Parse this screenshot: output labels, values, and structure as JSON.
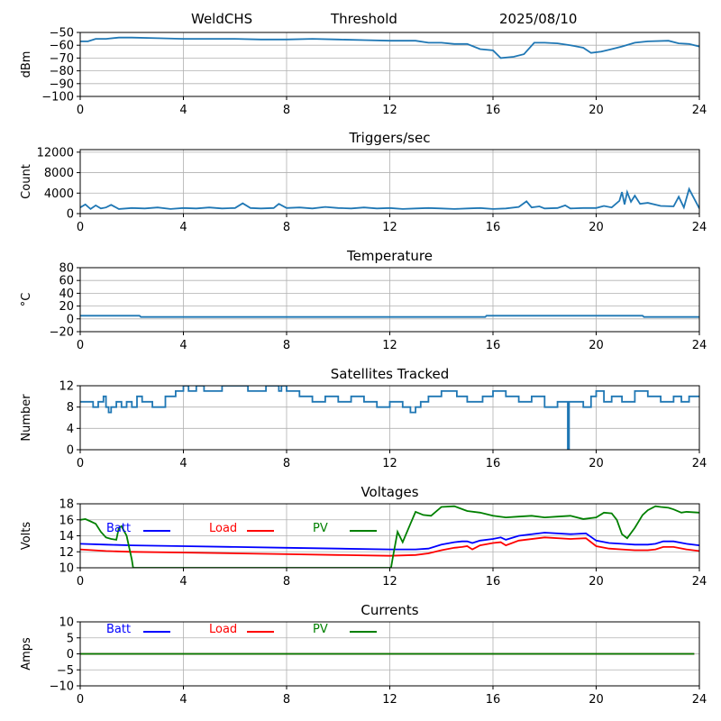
{
  "header": {
    "station": "WeldCHS",
    "mode": "Threshold",
    "date": "2025/08/10"
  },
  "colors": {
    "series": "#1f77b4",
    "batt": "#0000ff",
    "load": "#ff0000",
    "pv": "#008000",
    "grid": "#b0b0b0"
  },
  "chart_data": [
    {
      "id": "signal",
      "type": "line",
      "title": "",
      "xlabel": "",
      "ylabel": "dBm",
      "xlim": [
        0,
        24
      ],
      "xticks": [
        0,
        4,
        8,
        12,
        16,
        20,
        24
      ],
      "ylim": [
        -100,
        -50
      ],
      "yticks": [
        -100,
        -90,
        -80,
        -70,
        -60,
        -50
      ],
      "grid": true,
      "series": [
        {
          "color": "series",
          "x": [
            0,
            0.3,
            0.6,
            1,
            1.5,
            2,
            3,
            4,
            5,
            6,
            7,
            8,
            9,
            10,
            11,
            12,
            13,
            13.5,
            14,
            14.5,
            15,
            15.5,
            16,
            16.3,
            16.8,
            17.2,
            17.6,
            18,
            18.5,
            19,
            19.5,
            19.8,
            20.2,
            20.6,
            21,
            21.5,
            22,
            22.8,
            23.2,
            23.6,
            24
          ],
          "y": [
            -57,
            -57,
            -55,
            -55,
            -54,
            -54,
            -54.5,
            -55,
            -55,
            -55,
            -55.5,
            -55.5,
            -55,
            -55.5,
            -56,
            -56.5,
            -56.5,
            -58,
            -58,
            -59,
            -59,
            -63,
            -64,
            -70,
            -69,
            -67,
            -58,
            -58,
            -58.5,
            -60,
            -62,
            -66,
            -65,
            -63,
            -61,
            -58,
            -57,
            -56.5,
            -58.5,
            -59,
            -61
          ]
        }
      ]
    },
    {
      "id": "triggers",
      "type": "line",
      "title": "Triggers/sec",
      "xlabel": "",
      "ylabel": "Count",
      "xlim": [
        0,
        24
      ],
      "xticks": [
        0,
        4,
        8,
        12,
        16,
        20,
        24
      ],
      "ylim": [
        0,
        12500
      ],
      "yticks": [
        0,
        4000,
        8000,
        12000
      ],
      "grid": true,
      "series": [
        {
          "color": "series",
          "x": [
            0,
            0.2,
            0.4,
            0.6,
            0.8,
            1,
            1.2,
            1.5,
            2,
            2.5,
            3,
            3.5,
            4,
            4.5,
            5,
            5.5,
            6,
            6.3,
            6.6,
            7,
            7.5,
            7.7,
            8,
            8.5,
            9,
            9.5,
            10,
            10.5,
            11,
            11.5,
            12,
            12.5,
            13,
            13.5,
            14,
            14.5,
            15,
            15.5,
            16,
            16.5,
            17,
            17.3,
            17.5,
            17.8,
            18,
            18.5,
            18.8,
            19,
            19.5,
            20,
            20.3,
            20.6,
            20.9,
            21,
            21.1,
            21.2,
            21.35,
            21.5,
            21.7,
            22,
            22.5,
            23,
            23.2,
            23.4,
            23.6,
            24
          ],
          "y": [
            1200,
            1800,
            900,
            1600,
            1000,
            1200,
            1700,
            900,
            1100,
            1000,
            1200,
            900,
            1100,
            1000,
            1200,
            1000,
            1100,
            2000,
            1100,
            1000,
            1100,
            1900,
            1100,
            1200,
            1000,
            1300,
            1100,
            1000,
            1200,
            1000,
            1100,
            900,
            1000,
            1100,
            1000,
            900,
            1000,
            1100,
            900,
            1000,
            1300,
            2400,
            1200,
            1400,
            1000,
            1100,
            1600,
            1000,
            1100,
            1100,
            1500,
            1200,
            2500,
            4200,
            1800,
            4200,
            2300,
            3500,
            1900,
            2100,
            1500,
            1400,
            3300,
            1200,
            4800,
            1000
          ]
        }
      ]
    },
    {
      "id": "temperature",
      "type": "line",
      "title": "Temperature",
      "xlabel": "",
      "ylabel": "°C",
      "xlim": [
        0,
        24
      ],
      "xticks": [
        0,
        4,
        8,
        12,
        16,
        20,
        24
      ],
      "ylim": [
        -20,
        80
      ],
      "yticks": [
        -20,
        0,
        20,
        40,
        60,
        80
      ],
      "grid": true,
      "series": [
        {
          "color": "series",
          "x": [
            0,
            2.3,
            2.35,
            15.7,
            15.75,
            21.8,
            21.85,
            24
          ],
          "y": [
            5,
            5,
            3,
            3,
            5,
            5,
            3,
            3
          ]
        }
      ]
    },
    {
      "id": "satellites",
      "type": "line",
      "title": "Satellites Tracked",
      "xlabel": "",
      "ylabel": "Number",
      "xlim": [
        0,
        24
      ],
      "xticks": [
        0,
        4,
        8,
        12,
        16,
        20,
        24
      ],
      "ylim": [
        0,
        12
      ],
      "yticks": [
        0,
        4,
        8,
        12
      ],
      "grid": true,
      "series": [
        {
          "color": "series",
          "x": [
            0,
            0.5,
            0.5,
            0.7,
            0.7,
            0.9,
            0.9,
            1,
            1,
            1.1,
            1.1,
            1.2,
            1.2,
            1.4,
            1.4,
            1.6,
            1.6,
            1.8,
            1.8,
            2,
            2,
            2.2,
            2.2,
            2.4,
            2.4,
            2.8,
            2.8,
            3.3,
            3.3,
            3.7,
            3.7,
            4,
            4,
            4.2,
            4.2,
            4.5,
            4.5,
            4.8,
            4.8,
            5.5,
            5.5,
            6.5,
            6.5,
            7.2,
            7.2,
            7.7,
            7.7,
            7.8,
            7.8,
            8,
            8,
            8.5,
            8.5,
            9,
            9,
            9.5,
            9.5,
            10,
            10,
            10.5,
            10.5,
            11,
            11,
            11.5,
            11.5,
            12,
            12,
            12.5,
            12.5,
            12.8,
            12.8,
            13,
            13,
            13.2,
            13.2,
            13.5,
            13.5,
            14,
            14,
            14.6,
            14.6,
            15,
            15,
            15.6,
            15.6,
            16,
            16,
            16.5,
            16.5,
            17,
            17,
            17.5,
            17.5,
            18,
            18,
            18.5,
            18.5,
            18.9,
            18.9,
            18.95,
            18.95,
            19.5,
            19.5,
            19.8,
            19.8,
            20,
            20,
            20.3,
            20.3,
            20.6,
            20.6,
            21,
            21,
            21.5,
            21.5,
            22,
            22,
            22.5,
            22.5,
            23,
            23,
            23.3,
            23.3,
            23.6,
            23.6,
            24
          ],
          "y": [
            9,
            9,
            8,
            8,
            9,
            9,
            10,
            10,
            8,
            8,
            7,
            7,
            8,
            8,
            9,
            9,
            8,
            8,
            9,
            9,
            8,
            8,
            10,
            10,
            9,
            9,
            8,
            8,
            10,
            10,
            11,
            11,
            12,
            12,
            11,
            11,
            12,
            12,
            11,
            11,
            12,
            12,
            11,
            11,
            12,
            12,
            11,
            11,
            12,
            12,
            11,
            11,
            10,
            10,
            9,
            9,
            10,
            10,
            9,
            9,
            10,
            10,
            9,
            9,
            8,
            8,
            9,
            9,
            8,
            8,
            7,
            7,
            8,
            8,
            9,
            9,
            10,
            10,
            11,
            11,
            10,
            10,
            9,
            9,
            10,
            10,
            11,
            11,
            10,
            10,
            9,
            9,
            10,
            10,
            8,
            8,
            9,
            9,
            0,
            0,
            9,
            9,
            8,
            8,
            10,
            10,
            11,
            11,
            9,
            9,
            10,
            10,
            9,
            9,
            11,
            11,
            10,
            10,
            9,
            9,
            10,
            10,
            9,
            9,
            10,
            10
          ]
        }
      ]
    },
    {
      "id": "voltages",
      "type": "line",
      "title": "Voltages",
      "xlabel": "",
      "ylabel": "Volts",
      "xlim": [
        0,
        24
      ],
      "xticks": [
        0,
        4,
        8,
        12,
        16,
        20,
        24
      ],
      "ylim": [
        10,
        18
      ],
      "yticks": [
        10,
        12,
        14,
        16,
        18
      ],
      "grid": true,
      "legend": [
        "Batt",
        "Load",
        "PV"
      ],
      "legend_position": "top-left",
      "series": [
        {
          "name": "Batt",
          "color": "batt",
          "x": [
            0,
            1,
            2,
            4,
            6,
            8,
            10,
            12,
            13,
            13.5,
            14,
            14.5,
            14.8,
            15,
            15.2,
            15.5,
            16,
            16.3,
            16.5,
            17,
            18,
            19,
            19.6,
            20,
            20.5,
            21,
            21.5,
            22,
            22.3,
            22.6,
            23,
            23.5,
            24
          ],
          "y": [
            13,
            12.9,
            12.8,
            12.7,
            12.6,
            12.5,
            12.4,
            12.3,
            12.3,
            12.4,
            12.9,
            13.2,
            13.3,
            13.3,
            13.1,
            13.4,
            13.6,
            13.8,
            13.5,
            14,
            14.4,
            14.2,
            14.3,
            13.4,
            13.1,
            13,
            12.9,
            12.9,
            13,
            13.3,
            13.3,
            13,
            12.8
          ]
        },
        {
          "name": "Load",
          "color": "load",
          "x": [
            0,
            1,
            2,
            4,
            6,
            8,
            10,
            12,
            13,
            13.5,
            14,
            14.5,
            14.8,
            15,
            15.2,
            15.5,
            16,
            16.3,
            16.5,
            17,
            18,
            19,
            19.6,
            20,
            20.5,
            21,
            21.5,
            22,
            22.3,
            22.6,
            23,
            23.5,
            24
          ],
          "y": [
            12.3,
            12.1,
            12,
            11.9,
            11.8,
            11.7,
            11.6,
            11.5,
            11.6,
            11.8,
            12.2,
            12.5,
            12.6,
            12.7,
            12.3,
            12.8,
            13.1,
            13.2,
            12.8,
            13.4,
            13.8,
            13.6,
            13.7,
            12.7,
            12.4,
            12.3,
            12.2,
            12.2,
            12.3,
            12.6,
            12.6,
            12.3,
            12.1
          ]
        },
        {
          "name": "PV",
          "color": "pv",
          "x": [
            0,
            0.2,
            0.4,
            0.6,
            0.8,
            1,
            1.2,
            1.4,
            1.5,
            1.6,
            1.8,
            2,
            2.05,
            12.05,
            12.1,
            12.3,
            12.5,
            12.8,
            13,
            13.3,
            13.6,
            14,
            14.5,
            15,
            15.5,
            16,
            16.5,
            17,
            17.5,
            18,
            18.5,
            19,
            19.5,
            20,
            20.3,
            20.6,
            20.8,
            21,
            21.2,
            21.5,
            21.8,
            22,
            22.3,
            22.5,
            22.8,
            23,
            23.3,
            23.5,
            24
          ],
          "y": [
            16,
            16.1,
            15.8,
            15.5,
            14.5,
            13.8,
            13.6,
            13.5,
            15,
            15.2,
            14,
            11,
            10,
            10,
            11,
            14.5,
            13.2,
            15.5,
            17,
            16.6,
            16.5,
            17.6,
            17.7,
            17.1,
            16.9,
            16.5,
            16.3,
            16.4,
            16.5,
            16.3,
            16.4,
            16.5,
            16.1,
            16.3,
            16.9,
            16.8,
            16,
            14.2,
            13.7,
            15,
            16.6,
            17.2,
            17.7,
            17.6,
            17.5,
            17.3,
            16.9,
            17,
            16.9
          ]
        }
      ]
    },
    {
      "id": "currents",
      "type": "line",
      "title": "Currents",
      "xlabel": "",
      "ylabel": "Amps",
      "xlim": [
        0,
        24
      ],
      "xticks": [
        0,
        4,
        8,
        12,
        16,
        20,
        24
      ],
      "ylim": [
        -10,
        10
      ],
      "yticks": [
        -10,
        -5,
        0,
        5,
        10
      ],
      "grid": true,
      "legend": [
        "Batt",
        "Load",
        "PV"
      ],
      "legend_position": "top-left",
      "series": [
        {
          "name": "Batt",
          "color": "batt",
          "x": [
            0,
            23.8
          ],
          "y": [
            0,
            0
          ]
        },
        {
          "name": "Load",
          "color": "load",
          "x": [
            0,
            23.8
          ],
          "y": [
            0,
            0
          ]
        },
        {
          "name": "PV",
          "color": "pv",
          "x": [
            0,
            23.8
          ],
          "y": [
            0,
            0
          ]
        }
      ]
    }
  ]
}
